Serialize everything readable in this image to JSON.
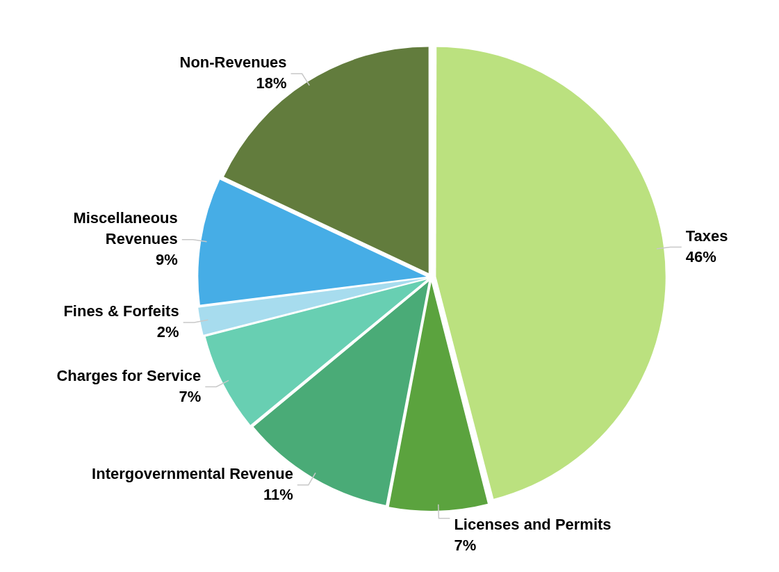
{
  "chart_data": {
    "type": "pie",
    "categories": [
      "Taxes",
      "Licenses and Permits",
      "Intergovernmental Revenue",
      "Charges for Service",
      "Fines & Forfeits",
      "Miscellaneous Revenues",
      "Non-Revenues"
    ],
    "values": [
      46,
      7,
      11,
      7,
      2,
      9,
      18
    ],
    "value_labels": [
      "46%",
      "7%",
      "11%",
      "7%",
      "2%",
      "9%",
      "18%"
    ],
    "colors": [
      "#bbe17f",
      "#5ba33e",
      "#4aab77",
      "#68cfb2",
      "#a7dcee",
      "#46ade6",
      "#627c3d"
    ],
    "legend": false
  }
}
